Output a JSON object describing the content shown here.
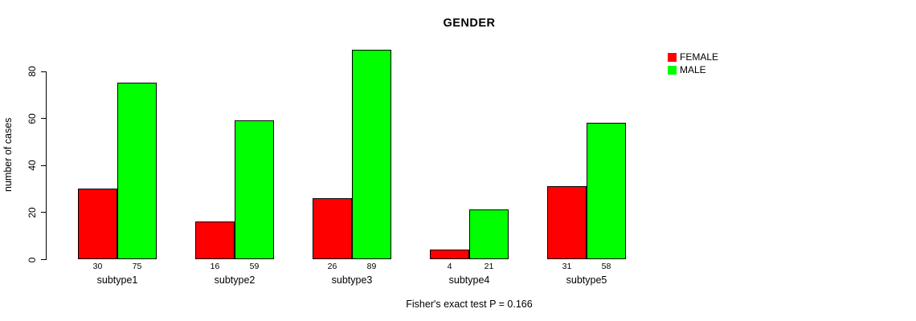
{
  "chart_data": {
    "type": "bar",
    "title": "GENDER",
    "ylabel": "number of cases",
    "xlabel": "",
    "footer": "Fisher's exact test P = 0.166",
    "categories": [
      "subtype1",
      "subtype2",
      "subtype3",
      "subtype4",
      "subtype5"
    ],
    "series": [
      {
        "name": "FEMALE",
        "color": "#ff0000",
        "values": [
          30,
          16,
          26,
          4,
          31
        ]
      },
      {
        "name": "MALE",
        "color": "#00ff00",
        "values": [
          75,
          59,
          89,
          21,
          58
        ]
      }
    ],
    "yticks": [
      0,
      20,
      40,
      60,
      80
    ],
    "ylim": [
      0,
      80
    ],
    "bar_value_labels": [
      [
        30,
        16,
        26,
        4,
        31
      ],
      [
        75,
        59,
        89,
        21,
        58
      ]
    ],
    "legend_position": "top-right",
    "grid": false,
    "bar_border_color": "#000000",
    "background_color": "#ffffff"
  }
}
